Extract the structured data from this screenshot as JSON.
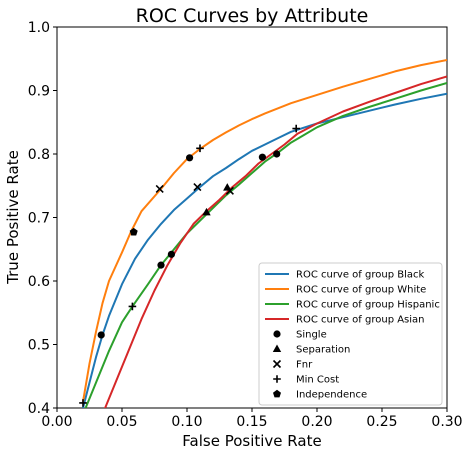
{
  "chart_data": {
    "type": "line",
    "title": "ROC Curves by Attribute",
    "xlabel": "False Positive Rate",
    "ylabel": "True Positive Rate",
    "xlim": [
      0.0,
      0.3
    ],
    "ylim": [
      0.4,
      1.0
    ],
    "xticks": [
      "0.00",
      "0.05",
      "0.10",
      "0.15",
      "0.20",
      "0.25",
      "0.30"
    ],
    "yticks": [
      "0.4",
      "0.5",
      "0.6",
      "0.7",
      "0.8",
      "0.9",
      "1.0"
    ],
    "grid": false,
    "legend_position": "bottom-right",
    "series": [
      {
        "name": "ROC curve of group Black",
        "color": "#1f77b4",
        "points": [
          [
            0.02,
            0.4
          ],
          [
            0.025,
            0.44
          ],
          [
            0.03,
            0.48
          ],
          [
            0.035,
            0.515
          ],
          [
            0.04,
            0.545
          ],
          [
            0.05,
            0.595
          ],
          [
            0.06,
            0.635
          ],
          [
            0.07,
            0.665
          ],
          [
            0.08,
            0.69
          ],
          [
            0.09,
            0.712
          ],
          [
            0.1,
            0.73
          ],
          [
            0.11,
            0.748
          ],
          [
            0.12,
            0.765
          ],
          [
            0.13,
            0.778
          ],
          [
            0.14,
            0.792
          ],
          [
            0.15,
            0.805
          ],
          [
            0.16,
            0.815
          ],
          [
            0.17,
            0.825
          ],
          [
            0.18,
            0.835
          ],
          [
            0.2,
            0.848
          ],
          [
            0.22,
            0.858
          ],
          [
            0.24,
            0.868
          ],
          [
            0.26,
            0.878
          ],
          [
            0.28,
            0.887
          ],
          [
            0.3,
            0.895
          ]
        ]
      },
      {
        "name": "ROC curve of group White",
        "color": "#ff7f0e",
        "points": [
          [
            0.02,
            0.41
          ],
          [
            0.025,
            0.47
          ],
          [
            0.03,
            0.52
          ],
          [
            0.035,
            0.565
          ],
          [
            0.04,
            0.6
          ],
          [
            0.05,
            0.645
          ],
          [
            0.057,
            0.678
          ],
          [
            0.065,
            0.71
          ],
          [
            0.08,
            0.745
          ],
          [
            0.09,
            0.77
          ],
          [
            0.1,
            0.792
          ],
          [
            0.11,
            0.808
          ],
          [
            0.12,
            0.822
          ],
          [
            0.13,
            0.834
          ],
          [
            0.14,
            0.845
          ],
          [
            0.15,
            0.855
          ],
          [
            0.16,
            0.864
          ],
          [
            0.17,
            0.872
          ],
          [
            0.18,
            0.88
          ],
          [
            0.2,
            0.893
          ],
          [
            0.22,
            0.906
          ],
          [
            0.24,
            0.918
          ],
          [
            0.26,
            0.93
          ],
          [
            0.28,
            0.94
          ],
          [
            0.3,
            0.948
          ]
        ]
      },
      {
        "name": "ROC curve of group Hispanic",
        "color": "#2ca02c",
        "points": [
          [
            0.02,
            0.39
          ],
          [
            0.03,
            0.44
          ],
          [
            0.04,
            0.49
          ],
          [
            0.05,
            0.535
          ],
          [
            0.058,
            0.56
          ],
          [
            0.07,
            0.595
          ],
          [
            0.08,
            0.625
          ],
          [
            0.09,
            0.65
          ],
          [
            0.1,
            0.675
          ],
          [
            0.115,
            0.705
          ],
          [
            0.13,
            0.735
          ],
          [
            0.14,
            0.752
          ],
          [
            0.15,
            0.77
          ],
          [
            0.16,
            0.788
          ],
          [
            0.17,
            0.802
          ],
          [
            0.18,
            0.818
          ],
          [
            0.19,
            0.83
          ],
          [
            0.2,
            0.842
          ],
          [
            0.22,
            0.86
          ],
          [
            0.24,
            0.874
          ],
          [
            0.26,
            0.887
          ],
          [
            0.28,
            0.9
          ],
          [
            0.3,
            0.912
          ]
        ]
      },
      {
        "name": "ROC curve of group Asian",
        "color": "#d62728",
        "points": [
          [
            0.035,
            0.39
          ],
          [
            0.045,
            0.44
          ],
          [
            0.055,
            0.49
          ],
          [
            0.065,
            0.54
          ],
          [
            0.075,
            0.585
          ],
          [
            0.085,
            0.625
          ],
          [
            0.095,
            0.66
          ],
          [
            0.105,
            0.69
          ],
          [
            0.115,
            0.71
          ],
          [
            0.125,
            0.728
          ],
          [
            0.135,
            0.748
          ],
          [
            0.145,
            0.765
          ],
          [
            0.155,
            0.785
          ],
          [
            0.165,
            0.8
          ],
          [
            0.175,
            0.815
          ],
          [
            0.185,
            0.832
          ],
          [
            0.2,
            0.848
          ],
          [
            0.22,
            0.867
          ],
          [
            0.24,
            0.882
          ],
          [
            0.26,
            0.896
          ],
          [
            0.28,
            0.91
          ],
          [
            0.3,
            0.922
          ]
        ]
      }
    ],
    "markers": [
      {
        "name": "Single",
        "symbol": "circle",
        "points": [
          [
            0.034,
            0.515
          ],
          [
            0.08,
            0.625
          ],
          [
            0.088,
            0.642
          ],
          [
            0.102,
            0.794
          ],
          [
            0.158,
            0.795
          ],
          [
            0.169,
            0.8
          ]
        ]
      },
      {
        "name": "Separation",
        "symbol": "triangle",
        "points": [
          [
            0.115,
            0.708
          ],
          [
            0.131,
            0.747
          ]
        ]
      },
      {
        "name": "Fnr",
        "symbol": "x",
        "points": [
          [
            0.079,
            0.745
          ],
          [
            0.108,
            0.748
          ],
          [
            0.133,
            0.742
          ]
        ]
      },
      {
        "name": "Min Cost",
        "symbol": "plus",
        "points": [
          [
            0.02,
            0.408
          ],
          [
            0.058,
            0.56
          ],
          [
            0.11,
            0.809
          ],
          [
            0.184,
            0.84
          ]
        ]
      },
      {
        "name": "Independence",
        "symbol": "pentagon",
        "points": [
          [
            0.059,
            0.677
          ]
        ]
      }
    ]
  }
}
